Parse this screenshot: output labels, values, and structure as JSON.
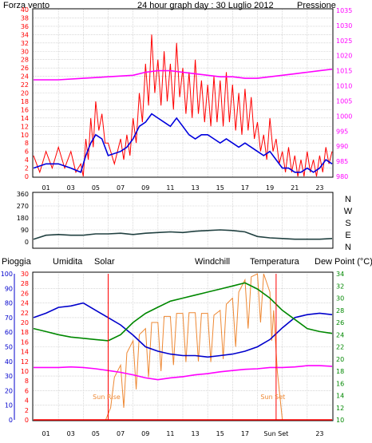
{
  "colors": {
    "wind": "#ff0000",
    "gust": "#0000dd",
    "pressure": "#ff00ff",
    "wind_dir": "#204040",
    "rain": "#ff0000",
    "humidity": "#0000cc",
    "solar": "#ee8833",
    "windchill": "#008080",
    "temperature": "#008800",
    "dew_point": "#ff00ff",
    "grid": "#c0c0c0",
    "background": "#ffffff"
  },
  "chart_data": [
    {
      "type": "line",
      "title": "24 hour graph day : 30 Luglio 2012",
      "left_label": "Forza vento",
      "right_label": "Pressione",
      "x_tick_labels": [
        "01",
        "03",
        "05",
        "07",
        "09",
        "11",
        "13",
        "15",
        "17",
        "19",
        "21",
        "23"
      ],
      "x_range": [
        0,
        24
      ],
      "y_left_ticks": [
        "0",
        "2",
        "4",
        "6",
        "8",
        "10",
        "12",
        "14",
        "16",
        "18",
        "20",
        "22",
        "24",
        "26",
        "28",
        "30",
        "32",
        "34",
        "36",
        "38",
        "40"
      ],
      "y_left_range": [
        0,
        40
      ],
      "y_right_ticks": [
        "980",
        "985",
        "990",
        "995",
        "1000",
        "1005",
        "1010",
        "1015",
        "1020",
        "1025",
        "1030",
        "1035"
      ],
      "y_right_range": [
        980,
        1035
      ],
      "series": [
        {
          "key": "wind_max",
          "x": [
            0,
            1,
            2,
            3,
            3.8,
            4.2,
            4.6,
            5,
            5.5,
            6,
            7,
            7.5,
            8,
            8.5,
            9,
            9.5,
            10,
            10.5,
            11,
            11.5,
            12,
            12.5,
            13,
            13.5,
            14,
            14.5,
            15,
            15.5,
            16,
            16.5,
            17,
            17.5,
            18,
            18.5,
            19,
            19.5,
            20,
            20.5,
            21,
            21.5,
            22,
            22.5,
            23,
            23.5,
            24
          ],
          "y": [
            5,
            6,
            7,
            6,
            3,
            9,
            14,
            18,
            15,
            8,
            9,
            10,
            14,
            20,
            27,
            34,
            28,
            30,
            27,
            32,
            26,
            25,
            28,
            23,
            22,
            24,
            23,
            25,
            22,
            20,
            21,
            19,
            13,
            10,
            14,
            9,
            6,
            7,
            5,
            4,
            6,
            4,
            5,
            7,
            6
          ]
        },
        {
          "key": "wind_min",
          "x": [
            0,
            1,
            2,
            3,
            3.8,
            4.2,
            4.6,
            5,
            5.5,
            6,
            7,
            7.5,
            8,
            8.5,
            9,
            9.5,
            10,
            10.5,
            11,
            11.5,
            12,
            12.5,
            13,
            13.5,
            14,
            14.5,
            15,
            15.5,
            16,
            16.5,
            17,
            17.5,
            18,
            18.5,
            19,
            19.5,
            20,
            20.5,
            21,
            21.5,
            22,
            22.5,
            23,
            23.5,
            24
          ],
          "y": [
            1,
            2,
            2,
            1,
            0,
            4,
            7,
            11,
            8,
            3,
            4,
            5,
            8,
            13,
            17,
            20,
            17,
            18,
            16,
            19,
            15,
            14,
            15,
            13,
            12,
            13,
            12,
            13,
            11,
            10,
            11,
            9,
            6,
            4,
            6,
            3,
            1,
            1,
            0,
            0,
            1,
            0,
            1,
            3,
            2
          ]
        },
        {
          "key": "wind_avg",
          "x": [
            0,
            1,
            2,
            3,
            3.8,
            4.2,
            4.6,
            5,
            5.5,
            6,
            7,
            7.5,
            8,
            8.5,
            9,
            9.5,
            10,
            10.5,
            11,
            11.5,
            12,
            12.5,
            13,
            13.5,
            14,
            14.5,
            15,
            15.5,
            16,
            16.5,
            17,
            17.5,
            18,
            18.5,
            19,
            19.5,
            20,
            20.5,
            21,
            21.5,
            22,
            22.5,
            23,
            23.5,
            24
          ],
          "y": [
            2,
            3,
            3,
            2,
            1,
            5,
            8,
            10,
            9,
            5,
            6,
            7,
            9,
            12,
            13,
            15,
            14,
            13,
            12,
            14,
            12,
            10,
            9,
            10,
            10,
            9,
            8,
            9,
            8,
            7,
            8,
            7,
            6,
            5,
            6,
            4,
            2,
            2,
            1,
            1,
            2,
            1,
            2,
            4,
            3
          ]
        },
        {
          "key": "pressure",
          "x": [
            0,
            2,
            4,
            6,
            8,
            9,
            10,
            11,
            12,
            13,
            14,
            15,
            16,
            17,
            18,
            19,
            20,
            21,
            22,
            23,
            24
          ],
          "y": [
            1012,
            1012,
            1012.5,
            1013,
            1013.5,
            1014.5,
            1015,
            1015,
            1014.5,
            1014,
            1013.5,
            1013,
            1013,
            1012.5,
            1012.5,
            1013,
            1013.5,
            1014,
            1014.5,
            1015,
            1015.5
          ]
        }
      ]
    },
    {
      "type": "line",
      "y_ticks": [
        "0",
        "90",
        "180",
        "270",
        "360"
      ],
      "y_range": [
        0,
        360
      ],
      "direction_labels": [
        "N",
        "W",
        "S",
        "E",
        "N"
      ],
      "series": [
        {
          "key": "wind_direction",
          "x": [
            0,
            1,
            2,
            3,
            4,
            5,
            6,
            7,
            8,
            9,
            10,
            11,
            12,
            13,
            14,
            15,
            16,
            17,
            18,
            19,
            20,
            21,
            22,
            23,
            24
          ],
          "y": [
            20,
            50,
            55,
            50,
            50,
            60,
            60,
            65,
            55,
            65,
            70,
            75,
            70,
            80,
            85,
            90,
            85,
            75,
            40,
            30,
            25,
            20,
            20,
            20,
            25
          ]
        }
      ]
    },
    {
      "type": "line",
      "legend": [
        "Pioggia",
        "Umidita",
        "Solar",
        "Windchill",
        "Temperatura",
        "Dew Point (°C)"
      ],
      "x_tick_labels": [
        "01",
        "03",
        "05",
        "07",
        "09",
        "11",
        "13",
        "15",
        "17",
        "Sun Set",
        "23"
      ],
      "annotations": [
        "Sun Rise",
        "Sun Set"
      ],
      "y_rain_ticks": [
        "0",
        "2",
        "4",
        "6",
        "8",
        "10",
        "12",
        "14",
        "16",
        "18",
        "20",
        "22",
        "24",
        "26",
        "28",
        "30"
      ],
      "y_rain_range": [
        0,
        30
      ],
      "y_humidity_ticks": [
        "0",
        "10",
        "20",
        "30",
        "40",
        "50",
        "60",
        "70",
        "80",
        "90",
        "100"
      ],
      "y_humidity_range": [
        0,
        100
      ],
      "y_temp_ticks": [
        "10",
        "12",
        "14",
        "16",
        "18",
        "20",
        "22",
        "24",
        "26",
        "28",
        "30",
        "32",
        "34"
      ],
      "y_temp_range": [
        10,
        34
      ],
      "series": [
        {
          "key": "humidity",
          "x": [
            0,
            1,
            2,
            3,
            4,
            5,
            6,
            7,
            8,
            9,
            10,
            11,
            12,
            13,
            14,
            15,
            16,
            17,
            18,
            19,
            20,
            21,
            22,
            23,
            24
          ],
          "y": [
            70,
            73,
            77,
            78,
            80,
            75,
            70,
            65,
            58,
            50,
            47,
            45,
            44,
            44,
            43,
            44,
            45,
            47,
            50,
            55,
            63,
            70,
            72,
            73,
            72
          ]
        },
        {
          "key": "temperature",
          "x": [
            0,
            1,
            2,
            3,
            4,
            5,
            6,
            7,
            8,
            9,
            10,
            11,
            12,
            13,
            14,
            15,
            16,
            17,
            18,
            19,
            20,
            21,
            22,
            23,
            24
          ],
          "y": [
            25,
            24.5,
            24,
            23.6,
            23.4,
            23.2,
            23,
            24,
            26,
            27.5,
            28.5,
            29.5,
            30,
            30.5,
            31,
            31.5,
            32,
            32.5,
            31.5,
            30,
            28,
            26.5,
            25,
            24.5,
            24.2
          ]
        },
        {
          "key": "dew_point",
          "x": [
            0,
            1,
            2,
            3,
            4,
            5,
            6,
            7,
            8,
            9,
            10,
            11,
            12,
            13,
            14,
            15,
            16,
            17,
            18,
            19,
            20,
            21,
            22,
            23,
            24
          ],
          "y": [
            18.6,
            18.6,
            18.6,
            18.7,
            18.6,
            18.4,
            18.1,
            17.8,
            17.4,
            16.9,
            16.6,
            16.9,
            17.1,
            17.4,
            17.6,
            17.9,
            18.1,
            18.3,
            18.4,
            18.6,
            18.6,
            18.7,
            18.9,
            18.9,
            18.8
          ]
        },
        {
          "key": "solar",
          "x": [
            0,
            5.8,
            6.2,
            6.5,
            7,
            7.5,
            8,
            8.5,
            9,
            9.5,
            10,
            10.5,
            11,
            11.5,
            12,
            12.5,
            13,
            13.5,
            14,
            14.5,
            15,
            15.5,
            16,
            16.5,
            17,
            17.5,
            18,
            18.5,
            19,
            19.3,
            19.6,
            20,
            24
          ],
          "y": [
            10,
            10,
            12,
            17,
            19,
            21,
            23,
            24,
            25,
            26,
            26,
            27,
            27,
            27.5,
            27.5,
            27.6,
            27.6,
            27.5,
            27.5,
            27.2,
            28,
            29,
            30,
            31,
            33,
            33.5,
            34,
            34,
            31,
            28,
            18,
            10,
            10
          ]
        },
        {
          "key": "rain",
          "x": [
            0,
            24
          ],
          "y": [
            0,
            0
          ]
        }
      ]
    }
  ]
}
